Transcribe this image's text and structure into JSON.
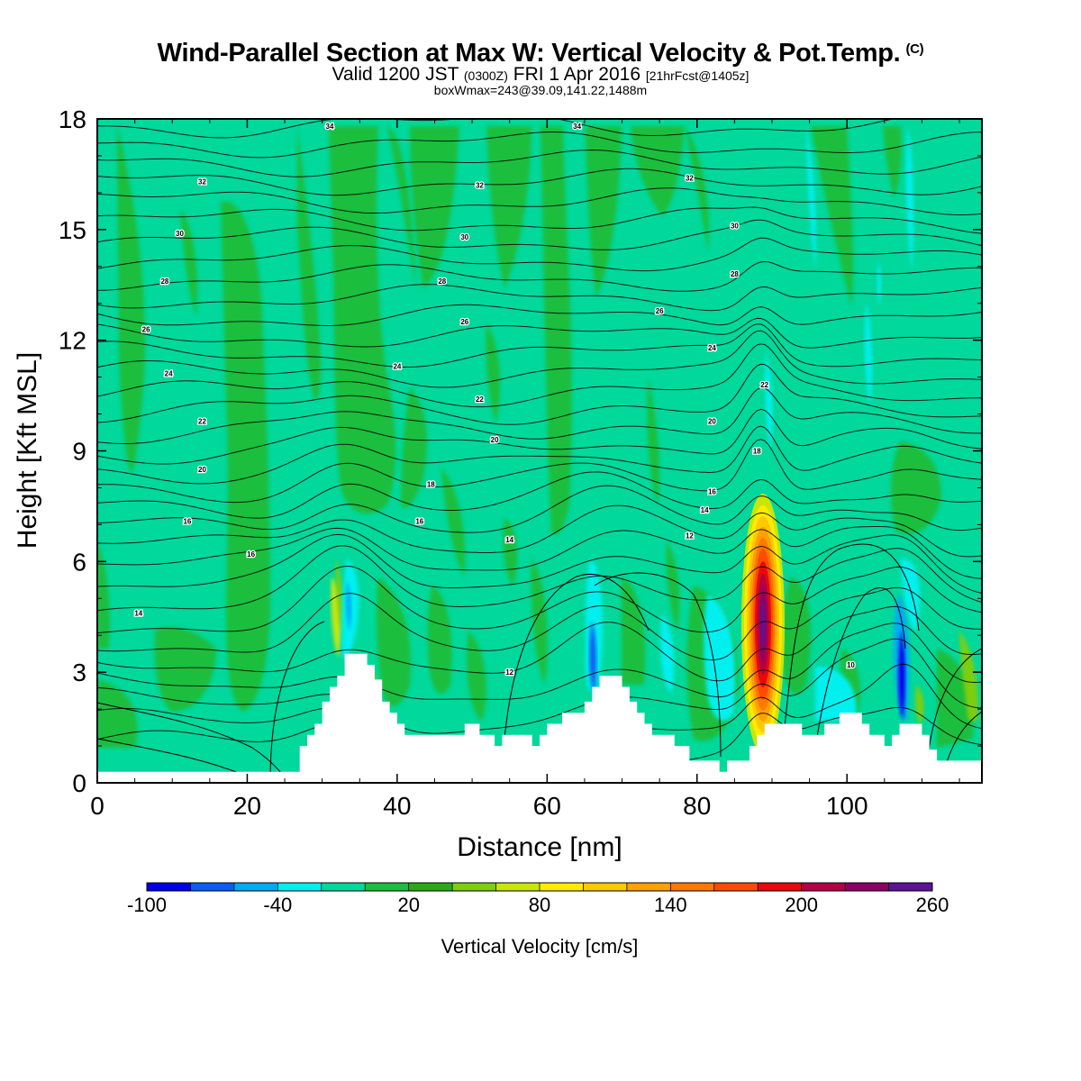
{
  "header": {
    "title": "Wind-Parallel Section at Max W: Vertical Velocity & Pot.Temp.",
    "title_tag": "(C)",
    "valid_prefix": "Valid 1200 JST",
    "valid_utc": "(0300Z)",
    "valid_date": "FRI 1 Apr 2016",
    "forecast": "[21hrFcst@1405z]",
    "box_info": "boxWmax=243@39.09,141.22,1488m"
  },
  "colorbar": {
    "label": "Vertical Velocity [cm/s]",
    "tick_labels": [
      "-100",
      "-40",
      "20",
      "80",
      "140",
      "200",
      "260"
    ],
    "colors": [
      "#0000e6",
      "#0a5ef0",
      "#00aaf5",
      "#00f0f0",
      "#00d89c",
      "#1ebe3c",
      "#2aab16",
      "#7fce0f",
      "#c8e60a",
      "#ffeb00",
      "#ffc800",
      "#ffa000",
      "#ff7800",
      "#ff4b00",
      "#e60a0a",
      "#b40046",
      "#8c0064",
      "#5a1496"
    ]
  },
  "chart_data": {
    "type": "contour",
    "xlabel": "Distance [nm]",
    "ylabel": "Height [Kft MSL]",
    "xlim": [
      0,
      118
    ],
    "ylim": [
      0,
      18
    ],
    "x_ticks": [
      "0",
      "20",
      "40",
      "60",
      "80",
      "100"
    ],
    "y_ticks": [
      "0",
      "3",
      "6",
      "9",
      "12",
      "15",
      "18"
    ],
    "terrain": [
      [
        0,
        0.3
      ],
      [
        27,
        0.3
      ],
      [
        27,
        1
      ],
      [
        28,
        1
      ],
      [
        28,
        1.3
      ],
      [
        29,
        1.3
      ],
      [
        29,
        1.6
      ],
      [
        30,
        1.6
      ],
      [
        30,
        2.2
      ],
      [
        31,
        2.2
      ],
      [
        31,
        2.6
      ],
      [
        32,
        2.6
      ],
      [
        32,
        2.9
      ],
      [
        33,
        2.9
      ],
      [
        33,
        3.5
      ],
      [
        36,
        3.5
      ],
      [
        36,
        3.2
      ],
      [
        37,
        3.2
      ],
      [
        37,
        2.8
      ],
      [
        38,
        2.8
      ],
      [
        38,
        2.2
      ],
      [
        39,
        2.2
      ],
      [
        39,
        1.9
      ],
      [
        40,
        1.9
      ],
      [
        40,
        1.6
      ],
      [
        41,
        1.6
      ],
      [
        41,
        1.3
      ],
      [
        49,
        1.3
      ],
      [
        49,
        1.6
      ],
      [
        51,
        1.6
      ],
      [
        51,
        1.3
      ],
      [
        53,
        1.3
      ],
      [
        53,
        1.0
      ],
      [
        54,
        1.0
      ],
      [
        54,
        1.3
      ],
      [
        58,
        1.3
      ],
      [
        58,
        1.0
      ],
      [
        59,
        1.0
      ],
      [
        59,
        1.3
      ],
      [
        60,
        1.3
      ],
      [
        60,
        1.6
      ],
      [
        62,
        1.6
      ],
      [
        62,
        1.9
      ],
      [
        65,
        1.9
      ],
      [
        65,
        2.2
      ],
      [
        66,
        2.2
      ],
      [
        66,
        2.6
      ],
      [
        67,
        2.6
      ],
      [
        67,
        2.9
      ],
      [
        70,
        2.9
      ],
      [
        70,
        2.6
      ],
      [
        71,
        2.6
      ],
      [
        71,
        2.2
      ],
      [
        72,
        2.2
      ],
      [
        72,
        1.9
      ],
      [
        73,
        1.9
      ],
      [
        73,
        1.6
      ],
      [
        74,
        1.6
      ],
      [
        74,
        1.3
      ],
      [
        77,
        1.3
      ],
      [
        77,
        1.0
      ],
      [
        79,
        1.0
      ],
      [
        79,
        0.6
      ],
      [
        83,
        0.6
      ],
      [
        83,
        0.3
      ],
      [
        84,
        0.3
      ],
      [
        84,
        0.6
      ],
      [
        87,
        0.6
      ],
      [
        87,
        1.0
      ],
      [
        88,
        1.0
      ],
      [
        88,
        1.3
      ],
      [
        89,
        1.3
      ],
      [
        89,
        1.6
      ],
      [
        94,
        1.6
      ],
      [
        94,
        1.3
      ],
      [
        97,
        1.3
      ],
      [
        97,
        1.6
      ],
      [
        99,
        1.6
      ],
      [
        99,
        1.9
      ],
      [
        102,
        1.9
      ],
      [
        102,
        1.6
      ],
      [
        103,
        1.6
      ],
      [
        103,
        1.3
      ],
      [
        105,
        1.3
      ],
      [
        105,
        1.0
      ],
      [
        106,
        1.0
      ],
      [
        106,
        1.3
      ],
      [
        107,
        1.3
      ],
      [
        107,
        1.6
      ],
      [
        110,
        1.6
      ],
      [
        110,
        1.3
      ],
      [
        111,
        1.3
      ],
      [
        111,
        0.9
      ],
      [
        112,
        0.9
      ],
      [
        112,
        0.6
      ],
      [
        118,
        0.6
      ]
    ],
    "isentrope_labels": [
      {
        "text": "34",
        "x": 31,
        "y": 17.8
      },
      {
        "text": "34",
        "x": 64,
        "y": 17.8
      },
      {
        "text": "32",
        "x": 14,
        "y": 16.3
      },
      {
        "text": "32",
        "x": 51,
        "y": 16.2
      },
      {
        "text": "32",
        "x": 79,
        "y": 16.4
      },
      {
        "text": "30",
        "x": 11,
        "y": 14.9
      },
      {
        "text": "30",
        "x": 49,
        "y": 14.8
      },
      {
        "text": "30",
        "x": 85,
        "y": 15.1
      },
      {
        "text": "28",
        "x": 9,
        "y": 13.6
      },
      {
        "text": "28",
        "x": 46,
        "y": 13.6
      },
      {
        "text": "28",
        "x": 85,
        "y": 13.8
      },
      {
        "text": "26",
        "x": 6.5,
        "y": 12.3
      },
      {
        "text": "26",
        "x": 49,
        "y": 12.5
      },
      {
        "text": "26",
        "x": 75,
        "y": 12.8
      },
      {
        "text": "24",
        "x": 9.5,
        "y": 11.1
      },
      {
        "text": "24",
        "x": 40,
        "y": 11.3
      },
      {
        "text": "24",
        "x": 82,
        "y": 11.8
      },
      {
        "text": "22",
        "x": 14,
        "y": 9.8
      },
      {
        "text": "22",
        "x": 51,
        "y": 10.4
      },
      {
        "text": "22",
        "x": 89,
        "y": 10.8
      },
      {
        "text": "20",
        "x": 14,
        "y": 8.5
      },
      {
        "text": "20",
        "x": 53,
        "y": 9.3
      },
      {
        "text": "20",
        "x": 82,
        "y": 9.8
      },
      {
        "text": "18",
        "x": 44.5,
        "y": 8.1
      },
      {
        "text": "18",
        "x": 88,
        "y": 9.0
      },
      {
        "text": "16",
        "x": 12,
        "y": 7.1
      },
      {
        "text": "16",
        "x": 43,
        "y": 7.1
      },
      {
        "text": "16",
        "x": 82,
        "y": 7.9
      },
      {
        "text": "14",
        "x": 55,
        "y": 6.6
      },
      {
        "text": "14",
        "x": 81,
        "y": 7.4
      },
      {
        "text": "12",
        "x": 79,
        "y": 6.7
      },
      {
        "text": "16",
        "x": 20.5,
        "y": 6.2
      },
      {
        "text": "14",
        "x": 5.5,
        "y": 4.6
      },
      {
        "text": "12",
        "x": 55,
        "y": 3.0
      },
      {
        "text": "10",
        "x": 100.5,
        "y": 3.2
      }
    ],
    "wmax_cm_s": 243,
    "grid": false
  }
}
